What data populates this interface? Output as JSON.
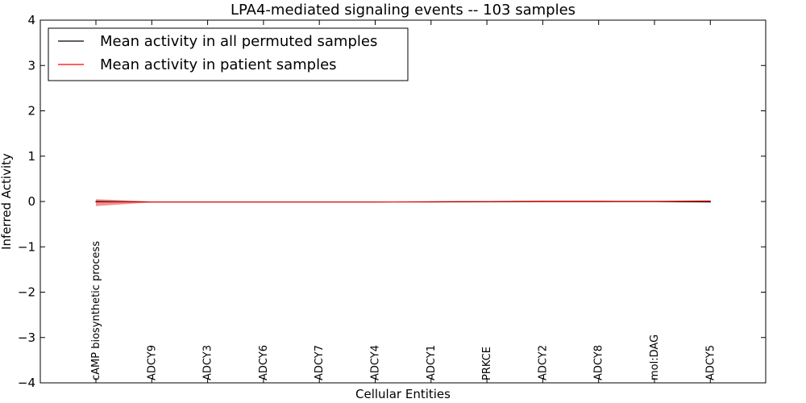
{
  "chart_data": {
    "type": "line",
    "title": "LPA4-mediated signaling events -- 103 samples",
    "xlabel": "Cellular Entities",
    "ylabel": "Inferred Activity",
    "ylim": [
      -4,
      4
    ],
    "yticks": [
      -4,
      -3,
      -2,
      -1,
      0,
      1,
      2,
      3,
      4
    ],
    "ytick_labels": [
      "−4",
      "−3",
      "−2",
      "−1",
      "0",
      "1",
      "2",
      "3",
      "4"
    ],
    "categories": [
      "cAMP biosynthetic process",
      "ADCY9",
      "ADCY3",
      "ADCY6",
      "ADCY7",
      "ADCY4",
      "ADCY1",
      "PRKCE",
      "ADCY2",
      "ADCY8",
      "mol:DAG",
      "ADCY5"
    ],
    "legend_position": "top-left",
    "series": [
      {
        "name": "Mean activity in all permuted samples",
        "color": "#000000",
        "values": [
          0.0,
          -0.01,
          -0.01,
          -0.01,
          -0.01,
          -0.01,
          -0.01,
          -0.005,
          0.0,
          0.0,
          0.0,
          -0.01
        ]
      },
      {
        "name": "Mean activity in patient samples",
        "color": "#ff0000",
        "band_color": "#e88080",
        "values": [
          -0.01,
          -0.01,
          -0.01,
          -0.01,
          -0.01,
          -0.01,
          -0.005,
          0.0,
          0.005,
          0.005,
          0.005,
          0.01
        ],
        "band_low": [
          -0.1,
          -0.02,
          -0.02,
          -0.02,
          -0.02,
          -0.02,
          -0.015,
          -0.01,
          -0.01,
          -0.01,
          -0.005,
          -0.005
        ],
        "band_high": [
          0.05,
          0.0,
          -0.005,
          -0.005,
          -0.005,
          -0.005,
          0.0,
          0.01,
          0.02,
          0.02,
          0.015,
          0.03
        ]
      }
    ]
  }
}
